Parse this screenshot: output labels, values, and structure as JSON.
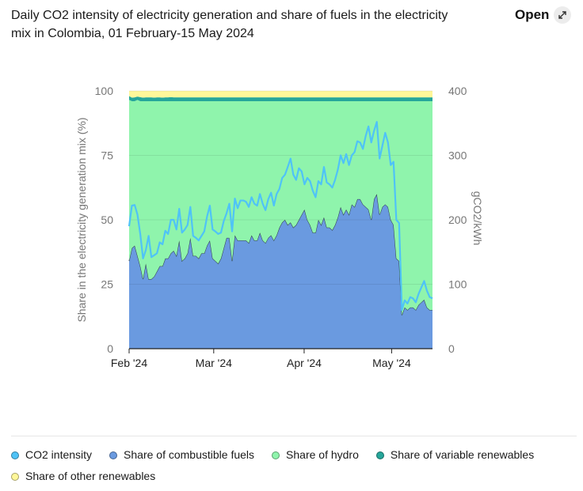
{
  "title": "Daily CO2 intensity of electricity generation and share of fuels in the electricity mix in Colombia, 01 February-15 May 2024",
  "open_button": {
    "label": "Open",
    "icon": "expand-icon"
  },
  "chart_data": {
    "type": "area",
    "title": "Daily CO2 intensity of electricity generation and share of fuels in the electricity mix in Colombia, 01 February-15 May 2024",
    "ylabel_left": "Share in the electricity generation mix (%)",
    "ylabel_right": "gCO2/kWh",
    "ylim_left": [
      0,
      100
    ],
    "ylim_right": [
      0,
      400
    ],
    "yticks_left": [
      "0",
      "25",
      "50",
      "75",
      "100"
    ],
    "yticks_right": [
      "0",
      "100",
      "200",
      "300",
      "400"
    ],
    "x_start": "2024-02-01",
    "x_end": "2024-05-15",
    "xticks": [
      {
        "date": "2024-02-01",
        "label": "Feb '24"
      },
      {
        "date": "2024-03-01",
        "label": "Mar '24"
      },
      {
        "date": "2024-04-01",
        "label": "Apr '24"
      },
      {
        "date": "2024-05-01",
        "label": "May '24"
      }
    ],
    "grid": true,
    "legend_position": "bottom",
    "series": [
      {
        "name": "CO2 intensity",
        "axis": "right",
        "kind": "line",
        "color": "#4fc3f7",
        "values": [
          190,
          222,
          223,
          208,
          178,
          140,
          153,
          175,
          142,
          145,
          148,
          165,
          162,
          183,
          178,
          200,
          200,
          185,
          217,
          180,
          185,
          192,
          220,
          175,
          172,
          168,
          175,
          182,
          205,
          222,
          185,
          182,
          178,
          180,
          198,
          210,
          225,
          182,
          233,
          218,
          230,
          230,
          228,
          220,
          235,
          225,
          222,
          240,
          225,
          215,
          232,
          242,
          222,
          240,
          248,
          265,
          270,
          282,
          295,
          270,
          262,
          280,
          275,
          255,
          265,
          260,
          245,
          235,
          260,
          255,
          282,
          258,
          255,
          250,
          262,
          278,
          300,
          288,
          302,
          285,
          300,
          305,
          322,
          320,
          310,
          330,
          345,
          320,
          338,
          352,
          295,
          315,
          335,
          320,
          285,
          290,
          200,
          195,
          60,
          75,
          70,
          80,
          78,
          72,
          85,
          95,
          105,
          90,
          80,
          78
        ]
      },
      {
        "name": "Share of combustible fuels",
        "axis": "left",
        "kind": "area",
        "color": "#6a9ae0",
        "values": [
          34,
          39,
          40,
          36,
          32,
          27,
          33,
          27,
          27,
          28,
          30,
          32,
          32,
          35,
          35,
          37,
          38,
          36,
          42,
          34,
          35,
          37,
          43,
          36,
          36,
          35,
          37,
          37,
          40,
          42,
          35,
          34,
          33,
          35,
          39,
          43,
          43,
          34,
          44,
          42,
          42,
          42,
          42,
          41,
          44,
          42,
          42,
          45,
          42,
          41,
          43,
          44,
          42,
          44,
          47,
          49,
          50,
          48,
          49,
          47,
          48,
          50,
          52,
          54,
          50,
          48,
          45,
          45,
          50,
          48,
          51,
          47,
          47,
          46,
          48,
          51,
          55,
          52,
          54,
          52,
          56,
          55,
          58,
          58,
          56,
          55,
          54,
          50,
          58,
          60,
          52,
          55,
          56,
          55,
          50,
          48,
          35,
          34,
          13,
          16,
          15,
          16,
          16,
          15,
          17,
          18,
          19,
          16,
          15,
          15
        ]
      },
      {
        "name": "Share of hydro",
        "axis": "left",
        "kind": "area",
        "color": "#8ff4ac",
        "values": [
          62.5,
          57,
          56,
          60.5,
          64,
          69,
          63,
          69,
          69,
          68,
          66,
          64,
          64,
          61,
          61,
          59,
          58,
          60,
          54,
          62,
          61,
          59,
          53,
          60,
          60,
          61,
          59,
          59,
          56,
          54,
          61,
          62,
          63,
          61,
          57,
          53,
          53,
          62,
          52,
          54,
          54,
          54,
          54,
          55,
          52,
          54,
          54,
          51,
          54,
          55,
          53,
          52,
          54,
          52,
          49,
          47,
          46,
          48,
          47,
          49,
          48,
          46,
          44,
          42,
          46,
          48,
          51,
          51,
          46,
          48,
          45,
          49,
          49,
          50,
          48,
          45,
          41,
          44,
          42,
          44,
          40,
          41,
          38,
          38,
          40,
          41,
          42,
          46,
          38,
          36,
          44,
          41,
          40,
          41,
          46,
          48,
          61,
          62,
          83,
          80,
          81,
          80,
          80,
          81,
          79,
          78,
          77,
          80,
          81,
          81
        ]
      },
      {
        "name": "Share of variable renewables",
        "axis": "left",
        "kind": "area",
        "color": "#26a69a",
        "values": [
          1.5,
          1.4,
          1.5,
          1.3,
          1.6,
          1.4,
          1.5,
          1.5,
          1.5,
          1.4,
          1.5,
          1.5,
          1.4,
          1.5,
          1.5,
          1.6,
          1.5,
          1.5,
          1.5,
          1.5,
          1.5,
          1.5,
          1.5,
          1.5,
          1.5,
          1.5,
          1.5,
          1.5,
          1.5,
          1.5,
          1.5,
          1.5,
          1.5,
          1.5,
          1.5,
          1.5,
          1.5,
          1.5,
          1.5,
          1.5,
          1.5,
          1.5,
          1.5,
          1.5,
          1.5,
          1.5,
          1.5,
          1.5,
          1.5,
          1.5,
          1.5,
          1.5,
          1.5,
          1.5,
          1.5,
          1.5,
          1.5,
          1.5,
          1.5,
          1.5,
          1.5,
          1.5,
          1.5,
          1.5,
          1.5,
          1.5,
          1.5,
          1.5,
          1.5,
          1.5,
          1.5,
          1.5,
          1.5,
          1.5,
          1.5,
          1.5,
          1.5,
          1.5,
          1.5,
          1.5,
          1.5,
          1.5,
          1.5,
          1.5,
          1.5,
          1.5,
          1.5,
          1.5,
          1.5,
          1.5,
          1.5,
          1.5,
          1.5,
          1.5,
          1.5,
          1.5,
          1.5,
          1.5,
          1.5,
          1.5,
          1.5,
          1.5,
          1.5,
          1.5,
          1.5,
          1.5,
          1.5,
          1.5,
          1.5,
          1.5
        ]
      },
      {
        "name": "Share of other renewables",
        "axis": "left",
        "kind": "area",
        "color": "#fff79a",
        "values": [
          2,
          2.6,
          2.5,
          2.2,
          2.4,
          2.6,
          2.5,
          2.5,
          2.5,
          2.6,
          2.5,
          2.5,
          2.6,
          2.5,
          2.5,
          2.4,
          2.5,
          2.5,
          2.5,
          2.5,
          2.5,
          2.5,
          2.5,
          2.5,
          2.5,
          2.5,
          2.5,
          2.5,
          2.5,
          2.5,
          2.5,
          2.5,
          2.5,
          2.5,
          2.5,
          2.5,
          2.5,
          2.5,
          2.5,
          2.5,
          2.5,
          2.5,
          2.5,
          2.5,
          2.5,
          2.5,
          2.5,
          2.5,
          2.5,
          2.5,
          2.5,
          2.5,
          2.5,
          2.5,
          2.5,
          2.5,
          2.5,
          2.5,
          2.5,
          2.5,
          2.5,
          2.5,
          2.5,
          2.5,
          2.5,
          2.5,
          2.5,
          2.5,
          2.5,
          2.5,
          2.5,
          2.5,
          2.5,
          2.5,
          2.5,
          2.5,
          2.5,
          2.5,
          2.5,
          2.5,
          2.5,
          2.5,
          2.5,
          2.5,
          2.5,
          2.5,
          2.5,
          2.5,
          2.5,
          2.5,
          2.5,
          2.5,
          2.5,
          2.5,
          2.5,
          2.5,
          2.5,
          2.5,
          2.5,
          2.5,
          2.5,
          2.5,
          2.5,
          2.5,
          2.5,
          2.5,
          2.5,
          2.5,
          2.5,
          2.5
        ]
      }
    ]
  }
}
